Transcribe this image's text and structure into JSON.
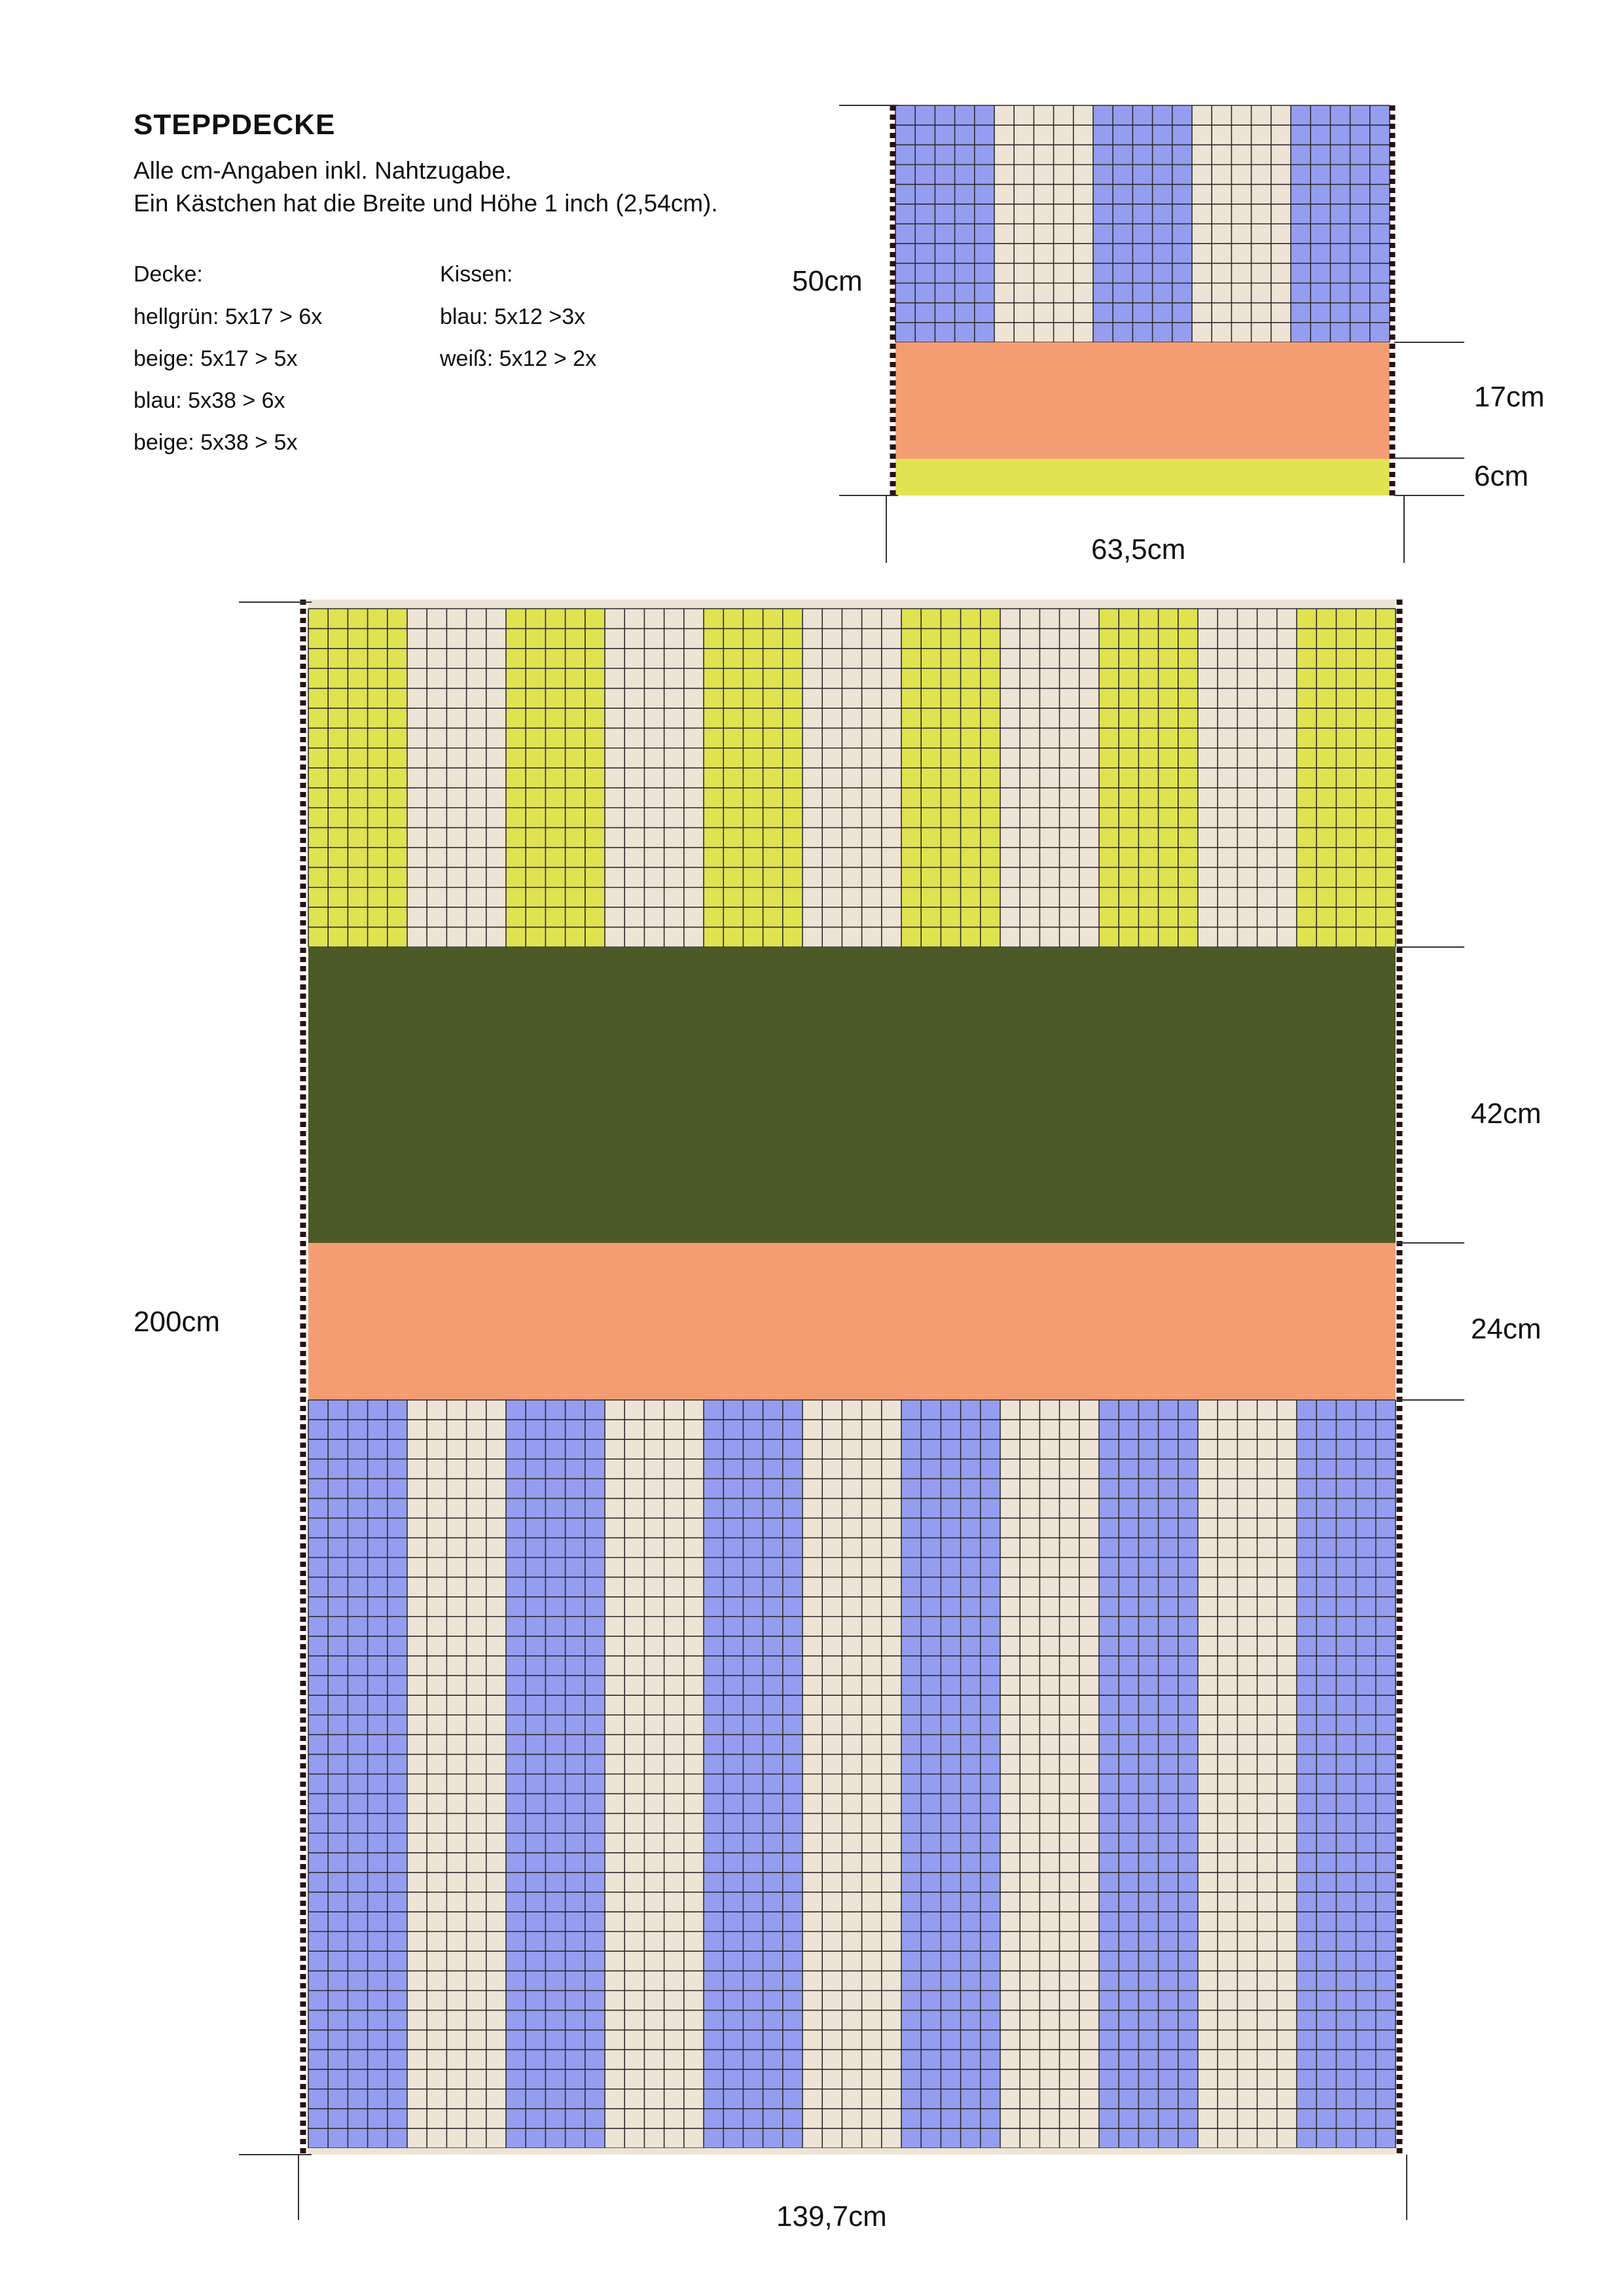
{
  "title": "STEPPDECKE",
  "notes": [
    "Alle cm-Angaben inkl. Nahtzugabe.",
    "Ein Kästchen hat die Breite und Höhe 1 inch (2,54cm)."
  ],
  "decke": {
    "heading": "Decke:",
    "items": [
      "hellgrün: 5x17 > 6x",
      "beige: 5x17 > 5x",
      "blau: 5x38 > 6x",
      "beige: 5x38 > 5x"
    ]
  },
  "kissen": {
    "heading": "Kissen:",
    "items": [
      "blau: 5x12 >3x",
      "weiß: 5x12 > 2x"
    ]
  },
  "colors": {
    "blau": "#959DF0",
    "beige": "#EDE4D6",
    "hellgruen": "#DFE350",
    "gelb": "#E1E352",
    "dunkelgruen": "#4B5A26",
    "apricot": "#F59D72",
    "grid_line": "#2b2b2b",
    "stitch": "#2a0f0f"
  },
  "pillow": {
    "label_height": "50cm",
    "label_band_apricot": "17cm",
    "label_band_yellow": "6cm",
    "label_width": "63,5cm",
    "stripes": [
      "blau",
      "beige",
      "blau",
      "beige",
      "blau"
    ]
  },
  "quilt": {
    "label_height": "200cm",
    "label_band_green": "42cm",
    "label_band_apricot": "24cm",
    "label_width": "139,7cm",
    "top_stripes": [
      "hellgruen",
      "beige",
      "hellgruen",
      "beige",
      "hellgruen",
      "beige",
      "hellgruen",
      "beige",
      "hellgruen",
      "beige",
      "hellgruen"
    ],
    "bottom_stripes": [
      "blau",
      "beige",
      "blau",
      "beige",
      "blau",
      "beige",
      "blau",
      "beige",
      "blau",
      "beige",
      "blau"
    ]
  }
}
